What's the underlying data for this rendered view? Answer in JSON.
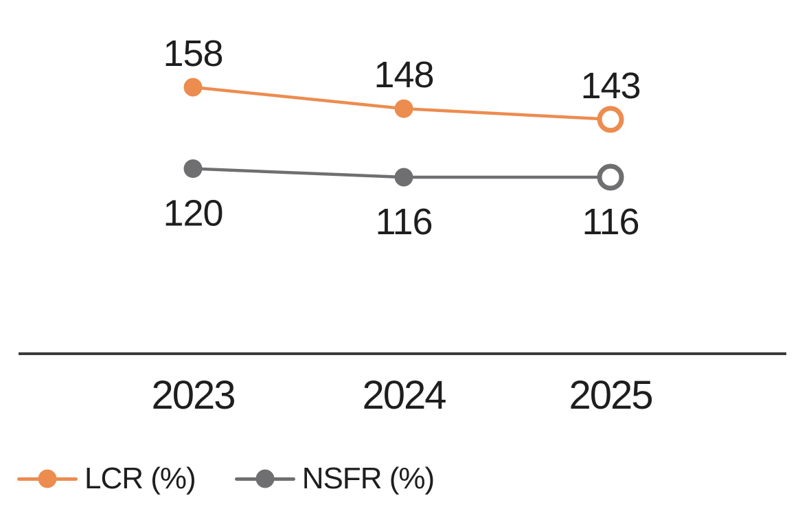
{
  "chart_data": {
    "type": "line",
    "x": [
      "2023",
      "2024",
      "2025"
    ],
    "series": [
      {
        "name": "LCR (%)",
        "values": [
          158,
          148,
          143
        ],
        "color": "#EC8C4F",
        "label_position": "above",
        "last_point_marker": "open-circle"
      },
      {
        "name": "NSFR (%)",
        "values": [
          120,
          116,
          116
        ],
        "color": "#6F6F71",
        "label_position": "below",
        "last_point_marker": "open-circle"
      }
    ],
    "grid": false,
    "legend_position": "bottom-left",
    "axis_line_color": "#3B3B3B",
    "label_color": "#1E1E1E"
  }
}
